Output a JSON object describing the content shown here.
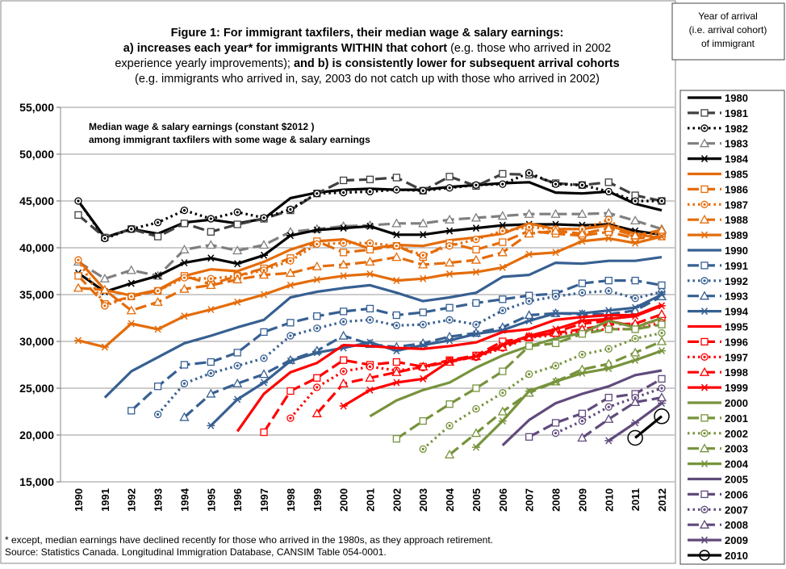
{
  "chart_data": {
    "type": "line",
    "title_lines": [
      [
        {
          "text": "Figure 1: For immigrant taxfilers, their median wage & salary earnings:",
          "bold": true
        }
      ],
      [
        {
          "text": "a) increases each year* for immigrants WITHIN that cohort",
          "bold": true
        },
        {
          "text": " (e.g. those who arrived in 2002",
          "bold": false
        }
      ],
      [
        {
          "text": "experience yearly improvements); ",
          "bold": false
        },
        {
          "text": "and b) is consistently lower for subsequent arrival cohorts",
          "bold": true
        }
      ],
      [
        {
          "text": "(e.g. immigrants who arrived in, say, 2003 do not catch up with those who arrived in 2002)",
          "bold": false
        }
      ]
    ],
    "annotation_lines": [
      "Median wage & salary earnings (constant $2012 )",
      "among immigrant taxfilers with some wage & salary earnings"
    ],
    "footnotes": [
      "* except, median earnings have declined recently for those who arrived in the 1980s, as they approach retirement.",
      "Source:  Statistics Canada. Longitudinal Immigration Database, CANSIM Table 054-0001."
    ],
    "legend_title": [
      "Year of arrival",
      "(i.e. arrival cohort)",
      "of immigrant"
    ],
    "categories": [
      "1990",
      "1991",
      "1992",
      "1993",
      "1994",
      "1995",
      "1996",
      "1997",
      "1998",
      "1999",
      "2000",
      "2001",
      "2002",
      "2003",
      "2004",
      "2005",
      "2006",
      "2007",
      "2008",
      "2009",
      "2010",
      "2011",
      "2012"
    ],
    "ylim": [
      15000,
      55000
    ],
    "yticks": [
      {
        "value": 15000,
        "label": "15,000"
      },
      {
        "value": 20000,
        "label": "20,000"
      },
      {
        "value": 25000,
        "label": "25,000"
      },
      {
        "value": 30000,
        "label": "30,000"
      },
      {
        "value": 35000,
        "label": "35,000"
      },
      {
        "value": 40000,
        "label": "40,000"
      },
      {
        "value": 45000,
        "label": "45,000"
      },
      {
        "value": 50000,
        "label": "50,000"
      },
      {
        "value": 55000,
        "label": "55,000"
      }
    ],
    "grid": true,
    "series": [
      {
        "name": "1980",
        "color": "#000000",
        "dash": "solid",
        "marker": "none",
        "values": [
          45000,
          41100,
          42000,
          41500,
          42700,
          43000,
          42600,
          43100,
          45300,
          45900,
          46200,
          46300,
          46200,
          46200,
          46500,
          46700,
          46900,
          47000,
          45900,
          45800,
          46000,
          44700,
          44000
        ]
      },
      {
        "name": "1981",
        "color": "#404040",
        "dash": "dash",
        "marker": "square",
        "values": [
          43500,
          41100,
          42000,
          41200,
          42600,
          41700,
          42500,
          43100,
          44000,
          45800,
          47200,
          47300,
          47500,
          46100,
          47600,
          46600,
          47900,
          47800,
          46900,
          46700,
          47000,
          45600,
          45000
        ]
      },
      {
        "name": "1982",
        "color": "#000000",
        "dash": "dot",
        "marker": "circle-dot",
        "values": [
          45000,
          41000,
          42000,
          42700,
          44000,
          43100,
          43800,
          43200,
          44100,
          45800,
          45900,
          46000,
          46200,
          46100,
          46400,
          46700,
          46800,
          48000,
          46800,
          46700,
          46000,
          45000,
          45000
        ]
      },
      {
        "name": "1983",
        "color": "#7f7f7f",
        "dash": "dash",
        "marker": "triangle",
        "values": [
          38500,
          36700,
          37600,
          37000,
          39800,
          40300,
          39700,
          40300,
          41700,
          42000,
          42300,
          42400,
          42600,
          42600,
          43000,
          43200,
          43400,
          43600,
          43600,
          43600,
          43700,
          42900,
          42000
        ]
      },
      {
        "name": "1984",
        "color": "#000000",
        "dash": "solid",
        "marker": "asterisk",
        "values": [
          37300,
          35300,
          36200,
          37000,
          38400,
          38900,
          38300,
          39200,
          41300,
          41900,
          42100,
          42300,
          41400,
          41400,
          41800,
          42100,
          42400,
          42500,
          42500,
          42400,
          42500,
          41800,
          41400
        ]
      },
      {
        "name": "1985",
        "color": "#e46c0a",
        "dash": "solid",
        "marker": "none",
        "values": [
          38700,
          35500,
          34900,
          35500,
          37000,
          37700,
          37500,
          38500,
          39800,
          40700,
          40900,
          39900,
          40300,
          40200,
          40800,
          41100,
          41500,
          42600,
          42000,
          42000,
          42400,
          41500,
          41000
        ]
      },
      {
        "name": "1986",
        "color": "#e46c0a",
        "dash": "dash",
        "marker": "square",
        "values": [
          37000,
          34000,
          34800,
          35400,
          37000,
          36100,
          37000,
          37800,
          38900,
          40700,
          39500,
          39800,
          40200,
          39000,
          40500,
          39800,
          40600,
          41800,
          41500,
          41300,
          41700,
          41000,
          41200
        ]
      },
      {
        "name": "1987",
        "color": "#e46c0a",
        "dash": "dot",
        "marker": "circle-dot",
        "values": [
          38700,
          33800,
          34800,
          35400,
          36800,
          36700,
          37000,
          37600,
          38600,
          40400,
          40500,
          40500,
          40200,
          39200,
          40200,
          40900,
          41800,
          42200,
          42000,
          42000,
          43000,
          41000,
          41700
        ]
      },
      {
        "name": "1988",
        "color": "#e46c0a",
        "dash": "dash",
        "marker": "triangle",
        "values": [
          35700,
          35500,
          33300,
          34200,
          35600,
          36000,
          36600,
          37100,
          37300,
          38000,
          38200,
          38500,
          39000,
          38200,
          38400,
          38700,
          39500,
          41500,
          41800,
          41500,
          42100,
          41300,
          41900
        ]
      },
      {
        "name": "1989",
        "color": "#e46c0a",
        "dash": "solid",
        "marker": "asterisk",
        "values": [
          30100,
          29400,
          31900,
          31300,
          32700,
          33400,
          34200,
          35000,
          36000,
          36600,
          37000,
          37200,
          36500,
          36700,
          37200,
          37400,
          37900,
          39300,
          39500,
          40700,
          41000,
          40500,
          41200
        ]
      },
      {
        "name": "1990",
        "color": "#376092",
        "dash": "solid",
        "marker": "none",
        "values": [
          null,
          24000,
          26800,
          28300,
          29800,
          30600,
          31500,
          32300,
          34700,
          35300,
          35700,
          36000,
          35200,
          34300,
          34700,
          35200,
          36900,
          37100,
          38400,
          38300,
          38600,
          38600,
          39000
        ]
      },
      {
        "name": "1991",
        "color": "#376092",
        "dash": "dash",
        "marker": "square",
        "values": [
          null,
          null,
          22600,
          25200,
          27500,
          27800,
          28800,
          31000,
          32000,
          32700,
          33200,
          33500,
          32800,
          33100,
          33600,
          34100,
          34500,
          34900,
          35100,
          36200,
          36500,
          36500,
          36000
        ]
      },
      {
        "name": "1992",
        "color": "#376092",
        "dash": "dot",
        "marker": "circle-dot",
        "values": [
          null,
          null,
          null,
          22200,
          25500,
          26600,
          27400,
          28200,
          30600,
          31400,
          32100,
          32300,
          31700,
          31800,
          32300,
          31800,
          33300,
          34300,
          34800,
          35200,
          35400,
          34600,
          35300
        ]
      },
      {
        "name": "1993",
        "color": "#376092",
        "dash": "dash",
        "marker": "triangle",
        "values": [
          null,
          null,
          null,
          null,
          21900,
          24400,
          25500,
          26500,
          28000,
          29000,
          30600,
          29700,
          29400,
          29800,
          30500,
          30900,
          31500,
          32800,
          33000,
          32900,
          32900,
          33300,
          34800
        ]
      },
      {
        "name": "1994",
        "color": "#376092",
        "dash": "solid",
        "marker": "asterisk",
        "values": [
          null,
          null,
          null,
          null,
          null,
          21000,
          23800,
          25600,
          27900,
          28800,
          29300,
          29900,
          29000,
          29600,
          30100,
          30800,
          31200,
          32200,
          33000,
          33000,
          33300,
          33600,
          35000
        ]
      },
      {
        "name": "1995",
        "color": "#ff0000",
        "dash": "solid",
        "marker": "none",
        "values": [
          null,
          null,
          null,
          null,
          null,
          null,
          20400,
          24400,
          26700,
          27700,
          29600,
          29500,
          29300,
          29200,
          29500,
          29900,
          31000,
          31300,
          32300,
          32600,
          32800,
          32800,
          33900
        ]
      },
      {
        "name": "1996",
        "color": "#ff0000",
        "dash": "dash",
        "marker": "square",
        "values": [
          null,
          null,
          null,
          null,
          null,
          null,
          null,
          20300,
          24700,
          26100,
          28000,
          27500,
          27800,
          27300,
          28000,
          28500,
          30000,
          30400,
          31000,
          31900,
          32200,
          31600,
          32400
        ]
      },
      {
        "name": "1997",
        "color": "#ff0000",
        "dash": "dot",
        "marker": "circle-dot",
        "values": [
          null,
          null,
          null,
          null,
          null,
          null,
          null,
          null,
          21800,
          25100,
          26800,
          27300,
          26900,
          27200,
          27900,
          28300,
          29300,
          30400,
          30700,
          31100,
          31300,
          31300,
          32000
        ]
      },
      {
        "name": "1998",
        "color": "#ff0000",
        "dash": "dash",
        "marker": "triangle",
        "values": [
          null,
          null,
          null,
          null,
          null,
          null,
          null,
          null,
          null,
          22300,
          25500,
          26100,
          26700,
          27300,
          27800,
          28400,
          29400,
          30500,
          30900,
          31300,
          31800,
          31900,
          32900
        ]
      },
      {
        "name": "1999",
        "color": "#ff0000",
        "dash": "solid",
        "marker": "asterisk",
        "values": [
          null,
          null,
          null,
          null,
          null,
          null,
          null,
          null,
          null,
          null,
          23100,
          24800,
          25600,
          26000,
          27900,
          28400,
          29600,
          30600,
          31300,
          32200,
          32400,
          32700,
          33800
        ]
      },
      {
        "name": "2000",
        "color": "#77933c",
        "dash": "solid",
        "marker": "none",
        "values": [
          null,
          null,
          null,
          null,
          null,
          null,
          null,
          null,
          null,
          null,
          null,
          22000,
          23700,
          24800,
          25600,
          27200,
          28500,
          29500,
          30300,
          30900,
          32200,
          31500,
          32500
        ]
      },
      {
        "name": "2001",
        "color": "#77933c",
        "dash": "dash",
        "marker": "square",
        "values": [
          null,
          null,
          null,
          null,
          null,
          null,
          null,
          null,
          null,
          null,
          null,
          null,
          19600,
          21500,
          23300,
          25000,
          26800,
          29500,
          29800,
          30800,
          31300,
          31300,
          31800
        ]
      },
      {
        "name": "2002",
        "color": "#77933c",
        "dash": "dot",
        "marker": "circle-dot",
        "values": [
          null,
          null,
          null,
          null,
          null,
          null,
          null,
          null,
          null,
          null,
          null,
          null,
          null,
          18500,
          21000,
          22800,
          24500,
          26500,
          27400,
          28600,
          29200,
          30300,
          30900
        ]
      },
      {
        "name": "2003",
        "color": "#77933c",
        "dash": "dash",
        "marker": "triangle",
        "values": [
          null,
          null,
          null,
          null,
          null,
          null,
          null,
          null,
          null,
          null,
          null,
          null,
          null,
          null,
          17900,
          20200,
          22500,
          24500,
          25700,
          27000,
          27600,
          28800,
          30000
        ]
      },
      {
        "name": "2004",
        "color": "#77933c",
        "dash": "solid",
        "marker": "asterisk",
        "values": [
          null,
          null,
          null,
          null,
          null,
          null,
          null,
          null,
          null,
          null,
          null,
          null,
          null,
          null,
          null,
          18700,
          21500,
          24700,
          25700,
          26600,
          27100,
          28000,
          29000
        ]
      },
      {
        "name": "2005",
        "color": "#604a7b",
        "dash": "solid",
        "marker": "none",
        "values": [
          null,
          null,
          null,
          null,
          null,
          null,
          null,
          null,
          null,
          null,
          null,
          null,
          null,
          null,
          null,
          null,
          18900,
          21600,
          23400,
          24400,
          25200,
          26400,
          26900
        ]
      },
      {
        "name": "2006",
        "color": "#604a7b",
        "dash": "dash",
        "marker": "square",
        "values": [
          null,
          null,
          null,
          null,
          null,
          null,
          null,
          null,
          null,
          null,
          null,
          null,
          null,
          null,
          null,
          null,
          null,
          19800,
          21300,
          22300,
          24000,
          24400,
          26000
        ]
      },
      {
        "name": "2007",
        "color": "#604a7b",
        "dash": "dot",
        "marker": "circle-dot",
        "values": [
          null,
          null,
          null,
          null,
          null,
          null,
          null,
          null,
          null,
          null,
          null,
          null,
          null,
          null,
          null,
          null,
          null,
          null,
          20200,
          21500,
          23000,
          24000,
          25000
        ]
      },
      {
        "name": "2008",
        "color": "#604a7b",
        "dash": "dash",
        "marker": "triangle",
        "values": [
          null,
          null,
          null,
          null,
          null,
          null,
          null,
          null,
          null,
          null,
          null,
          null,
          null,
          null,
          null,
          null,
          null,
          null,
          null,
          19700,
          21700,
          23500,
          24000
        ]
      },
      {
        "name": "2009",
        "color": "#604a7b",
        "dash": "solid",
        "marker": "asterisk",
        "values": [
          null,
          null,
          null,
          null,
          null,
          null,
          null,
          null,
          null,
          null,
          null,
          null,
          null,
          null,
          null,
          null,
          null,
          null,
          null,
          null,
          19400,
          21300,
          23400
        ]
      },
      {
        "name": "2010",
        "color": "#000000",
        "dash": "solid",
        "marker": "circle",
        "values": [
          null,
          null,
          null,
          null,
          null,
          null,
          null,
          null,
          null,
          null,
          null,
          null,
          null,
          null,
          null,
          null,
          null,
          null,
          null,
          null,
          null,
          19700,
          22000
        ]
      }
    ]
  }
}
